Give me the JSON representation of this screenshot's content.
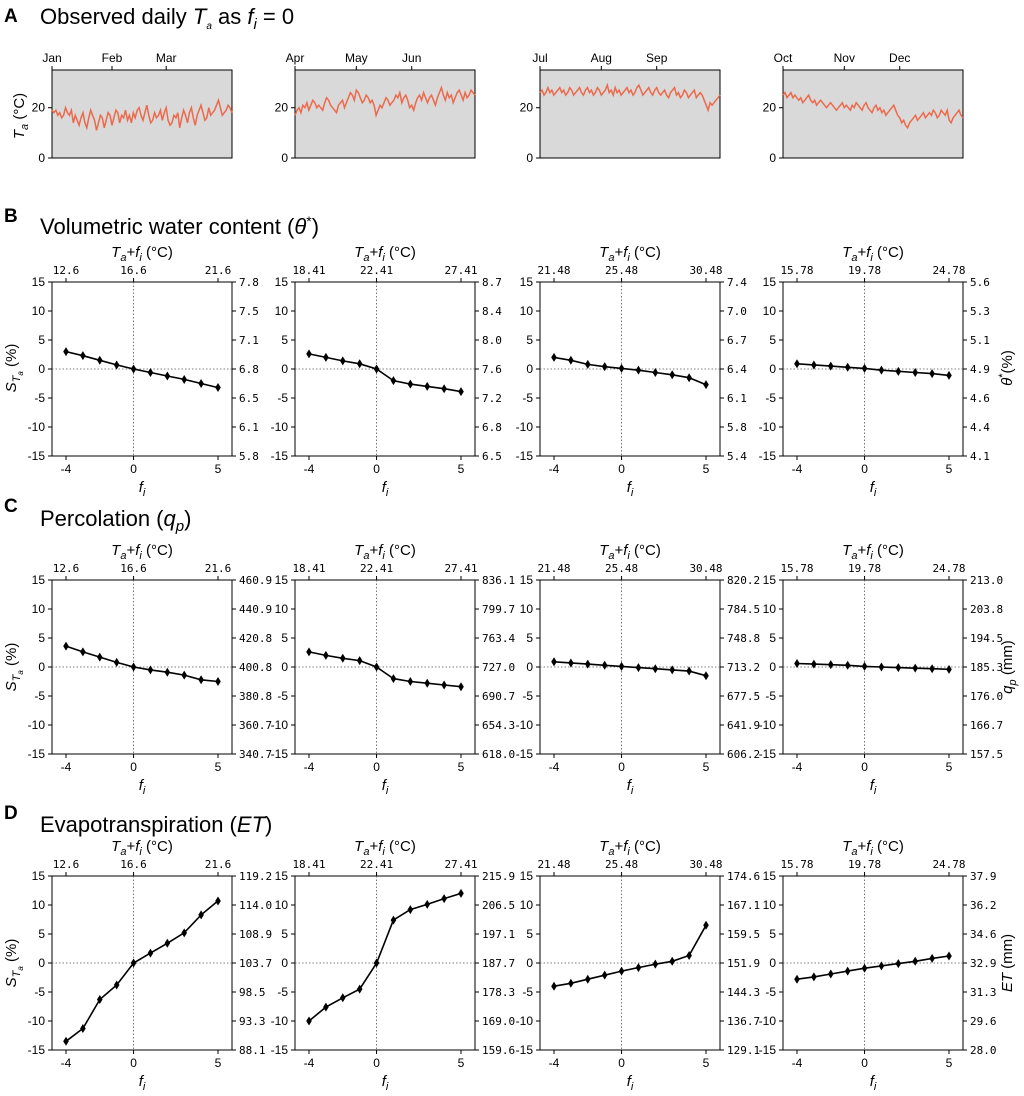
{
  "colors": {
    "line_ta": "#ec6a4c",
    "bg_ta": "#d9d9d9",
    "series": "#000000"
  },
  "panels": {
    "A": {
      "letter": "A",
      "title_parts": [
        "Observed daily ",
        "T",
        "a",
        " as ",
        "f",
        "i",
        " = 0"
      ]
    },
    "B": {
      "letter": "B",
      "title_parts": [
        "Volumetric water content (",
        "θ",
        "*",
        ")"
      ]
    },
    "C": {
      "letter": "C",
      "title_parts": [
        "Percolation (",
        "q",
        "p",
        ")"
      ]
    },
    "D": {
      "letter": "D",
      "title_parts": [
        "Evapotranspiration (",
        "ET",
        ")"
      ]
    }
  },
  "labels": {
    "ta_axis": {
      "main": "T",
      "sub": "a",
      "tail": " (°C)"
    },
    "top_axis": {
      "t": "T",
      "a": "a",
      "plus": "+",
      "f": "f",
      "i": "i",
      "unit": " (°C)"
    },
    "x_axis": {
      "main": "f",
      "sub": "i"
    },
    "left_axis": {
      "main": "S",
      "sub": "T",
      "subsub": "a",
      "tail": " (%)"
    },
    "right_axis_B": {
      "main": "θ",
      "sup": "*",
      "tail": "(%)"
    },
    "right_axis_C": {
      "main": "q",
      "sub": "p",
      "tail": " (mm)"
    },
    "right_axis_D": {
      "main": "ET",
      "tail": " (mm)"
    }
  },
  "chart_data": [
    {
      "id": "A",
      "type": "line",
      "title": "Observed daily Ta as fi = 0",
      "ylabel": "Ta (°C)",
      "ylim": [
        0,
        35
      ],
      "yticks": [
        0,
        20
      ],
      "quarters": [
        {
          "months": [
            "Jan",
            "Feb",
            "Mar"
          ],
          "values": [
            19,
            18,
            19,
            17,
            18,
            16,
            17,
            20,
            18,
            17,
            19,
            14,
            17,
            15,
            13,
            16,
            18,
            14,
            12,
            16,
            19,
            17,
            15,
            11,
            14,
            17,
            16,
            12,
            15,
            18,
            17,
            13,
            16,
            19,
            18,
            14,
            17,
            16,
            19,
            15,
            17,
            14,
            18,
            16,
            19,
            20,
            17,
            15,
            18,
            21,
            17,
            14,
            15,
            18,
            16,
            17,
            19,
            15,
            18,
            20,
            15,
            13,
            14,
            17,
            16,
            18,
            12,
            16,
            19,
            17,
            14,
            18,
            20,
            16,
            13,
            17,
            19,
            21,
            18,
            15,
            16,
            20,
            17,
            18,
            19,
            21,
            23,
            20,
            17,
            18,
            19,
            21,
            20,
            18
          ]
        },
        {
          "months": [
            "Apr",
            "May",
            "Jun"
          ],
          "values": [
            17,
            19,
            20,
            18,
            21,
            20,
            22,
            19,
            21,
            23,
            22,
            20,
            21,
            20,
            19,
            22,
            24,
            23,
            21,
            20,
            19,
            18,
            21,
            22,
            23,
            20,
            22,
            24,
            26,
            25,
            23,
            27,
            26,
            24,
            22,
            23,
            25,
            24,
            22,
            23,
            21,
            17,
            19,
            21,
            20,
            22,
            24,
            23,
            21,
            22,
            23,
            25,
            24,
            26,
            22,
            24,
            25,
            23,
            20,
            21,
            19,
            22,
            24,
            25,
            23,
            26,
            24,
            22,
            24,
            25,
            23,
            21,
            24,
            26,
            28,
            25,
            23,
            26,
            24,
            25,
            22,
            24,
            26,
            27,
            25,
            23,
            26,
            24,
            25,
            27,
            26,
            25
          ]
        },
        {
          "months": [
            "Jul",
            "Aug",
            "Sep"
          ],
          "values": [
            26,
            27,
            25,
            26,
            28,
            26,
            27,
            25,
            26,
            27,
            28,
            26,
            27,
            25,
            26,
            28,
            27,
            25,
            26,
            27,
            28,
            26,
            25,
            27,
            28,
            26,
            27,
            25,
            26,
            28,
            27,
            25,
            26,
            27,
            29,
            26,
            27,
            25,
            28,
            26,
            27,
            25,
            26,
            27,
            28,
            26,
            27,
            25,
            26,
            28,
            29,
            27,
            25,
            26,
            27,
            28,
            26,
            25,
            27,
            28,
            26,
            25,
            26,
            27,
            25,
            24,
            26,
            27,
            28,
            25,
            26,
            24,
            25,
            27,
            26,
            24,
            25,
            26,
            27,
            24,
            25,
            26,
            25,
            23,
            21,
            19,
            22,
            21,
            22,
            23,
            24,
            25
          ]
        },
        {
          "months": [
            "Oct",
            "Nov",
            "Dec"
          ],
          "values": [
            25,
            26,
            24,
            25,
            26,
            24,
            25,
            24,
            23,
            24,
            22,
            23,
            24,
            25,
            23,
            22,
            23,
            21,
            22,
            23,
            22,
            21,
            20,
            21,
            22,
            21,
            20,
            19,
            20,
            21,
            22,
            20,
            21,
            20,
            19,
            21,
            20,
            22,
            21,
            20,
            19,
            21,
            22,
            20,
            19,
            18,
            20,
            21,
            19,
            20,
            18,
            19,
            17,
            18,
            19,
            20,
            21,
            19,
            17,
            16,
            14,
            15,
            13,
            12,
            14,
            15,
            16,
            17,
            15,
            16,
            17,
            18,
            16,
            17,
            18,
            17,
            19,
            18,
            16,
            17,
            19,
            18,
            17,
            19,
            15,
            14,
            16,
            17,
            18,
            19,
            17,
            16
          ]
        }
      ]
    },
    {
      "id": "B",
      "type": "line",
      "title": "Volumetric water content (θ*)",
      "xlabel": "fi",
      "ylabel": "STa (%)",
      "right_label": "θ*(%)",
      "top_label": "Ta+fi (°C)",
      "x": [
        -4,
        -3,
        -2,
        -1,
        0,
        1,
        2,
        3,
        4,
        5
      ],
      "xticks": [
        -4,
        0,
        5
      ],
      "ylim": [
        -15,
        15
      ],
      "yticks": [
        -15,
        -10,
        -5,
        0,
        5,
        10,
        15
      ],
      "series": [
        {
          "top_ticks": [
            "12.6",
            "16.6",
            "21.6"
          ],
          "right_ticks": [
            "5.8",
            "6.1",
            "6.5",
            "6.8",
            "7.1",
            "7.5",
            "7.8"
          ],
          "values": [
            3.0,
            2.3,
            1.5,
            0.7,
            0,
            -0.6,
            -1.2,
            -1.8,
            -2.5,
            -3.2
          ]
        },
        {
          "top_ticks": [
            "18.41",
            "22.41",
            "27.41"
          ],
          "right_ticks": [
            "6.5",
            "6.8",
            "7.2",
            "7.6",
            "8.0",
            "8.4",
            "8.7"
          ],
          "values": [
            2.6,
            2.0,
            1.4,
            0.9,
            0,
            -2.0,
            -2.6,
            -3.0,
            -3.4,
            -3.9
          ]
        },
        {
          "top_ticks": [
            "21.48",
            "25.48",
            "30.48"
          ],
          "right_ticks": [
            "5.4",
            "5.8",
            "6.1",
            "6.4",
            "6.7",
            "7.0",
            "7.4"
          ],
          "values": [
            2.0,
            1.5,
            0.8,
            0.4,
            0.1,
            -0.2,
            -0.6,
            -1.0,
            -1.5,
            -2.7
          ]
        },
        {
          "top_ticks": [
            "15.78",
            "19.78",
            "24.78"
          ],
          "right_ticks": [
            "4.1",
            "4.4",
            "4.6",
            "4.9",
            "5.1",
            "5.3",
            "5.6"
          ],
          "values": [
            0.9,
            0.7,
            0.5,
            0.3,
            0.1,
            -0.2,
            -0.4,
            -0.6,
            -0.8,
            -1.1
          ]
        }
      ]
    },
    {
      "id": "C",
      "type": "line",
      "title": "Percolation (qp)",
      "xlabel": "fi",
      "ylabel": "STa (%)",
      "right_label": "qp (mm)",
      "top_label": "Ta+fi (°C)",
      "x": [
        -4,
        -3,
        -2,
        -1,
        0,
        1,
        2,
        3,
        4,
        5
      ],
      "xticks": [
        -4,
        0,
        5
      ],
      "ylim": [
        -15,
        15
      ],
      "yticks": [
        -15,
        -10,
        -5,
        0,
        5,
        10,
        15
      ],
      "series": [
        {
          "top_ticks": [
            "12.6",
            "16.6",
            "21.6"
          ],
          "right_ticks": [
            "340.7",
            "360.7",
            "380.8",
            "400.8",
            "420.8",
            "440.9",
            "460.9"
          ],
          "values": [
            3.6,
            2.6,
            1.7,
            0.8,
            0,
            -0.5,
            -0.9,
            -1.4,
            -2.2,
            -2.5
          ]
        },
        {
          "top_ticks": [
            "18.41",
            "22.41",
            "27.41"
          ],
          "right_ticks": [
            "618.0",
            "654.3",
            "690.7",
            "727.0",
            "763.4",
            "799.7",
            "836.1"
          ],
          "values": [
            2.6,
            2.0,
            1.5,
            1.1,
            0,
            -2.0,
            -2.5,
            -2.8,
            -3.1,
            -3.4
          ]
        },
        {
          "top_ticks": [
            "21.48",
            "25.48",
            "30.48"
          ],
          "right_ticks": [
            "606.2",
            "641.9",
            "677.5",
            "713.2",
            "748.8",
            "784.5",
            "820.2"
          ],
          "values": [
            0.9,
            0.7,
            0.5,
            0.3,
            0.1,
            -0.1,
            -0.3,
            -0.5,
            -0.7,
            -1.5
          ]
        },
        {
          "top_ticks": [
            "15.78",
            "19.78",
            "24.78"
          ],
          "right_ticks": [
            "157.5",
            "166.7",
            "176.0",
            "185.3",
            "194.5",
            "203.8",
            "213.0"
          ],
          "values": [
            0.6,
            0.5,
            0.4,
            0.3,
            0.1,
            0.0,
            -0.1,
            -0.2,
            -0.3,
            -0.4
          ]
        }
      ]
    },
    {
      "id": "D",
      "type": "line",
      "title": "Evapotranspiration (ET)",
      "xlabel": "fi",
      "ylabel": "STa (%)",
      "right_label": "ET (mm)",
      "top_label": "Ta+fi (°C)",
      "x": [
        -4,
        -3,
        -2,
        -1,
        0,
        1,
        2,
        3,
        4,
        5
      ],
      "xticks": [
        -4,
        0,
        5
      ],
      "ylim": [
        -15,
        15
      ],
      "yticks": [
        -15,
        -10,
        -5,
        0,
        5,
        10,
        15
      ],
      "series": [
        {
          "top_ticks": [
            "12.6",
            "16.6",
            "21.6"
          ],
          "right_ticks": [
            "88.1",
            "93.3",
            "98.5",
            "103.7",
            "108.9",
            "114.0",
            "119.2"
          ],
          "values": [
            -13.5,
            -11.3,
            -6.3,
            -3.8,
            0,
            1.7,
            3.4,
            5.2,
            8.3,
            10.7
          ]
        },
        {
          "top_ticks": [
            "18.41",
            "22.41",
            "27.41"
          ],
          "right_ticks": [
            "159.6",
            "169.0",
            "178.3",
            "187.7",
            "197.1",
            "206.5",
            "215.9"
          ],
          "values": [
            -10.0,
            -7.6,
            -6.0,
            -4.5,
            0,
            7.4,
            9.2,
            10.1,
            11.1,
            12.0
          ]
        },
        {
          "top_ticks": [
            "21.48",
            "25.48",
            "30.48"
          ],
          "right_ticks": [
            "129.1",
            "136.7",
            "144.3",
            "151.9",
            "159.5",
            "167.1",
            "174.6"
          ],
          "values": [
            -4.0,
            -3.5,
            -2.8,
            -2.1,
            -1.4,
            -0.8,
            -0.2,
            0.3,
            1.3,
            6.5
          ]
        },
        {
          "top_ticks": [
            "15.78",
            "19.78",
            "24.78"
          ],
          "right_ticks": [
            "28.0",
            "29.6",
            "31.3",
            "32.9",
            "34.6",
            "36.2",
            "37.9"
          ],
          "values": [
            -2.8,
            -2.4,
            -1.9,
            -1.4,
            -0.9,
            -0.5,
            -0.1,
            0.3,
            0.8,
            1.2
          ]
        }
      ]
    }
  ]
}
